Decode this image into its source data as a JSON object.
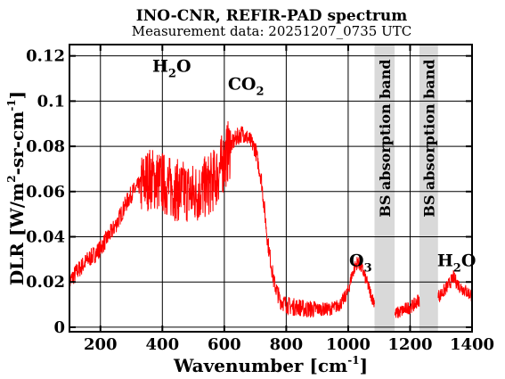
{
  "chart_data": {
    "type": "line",
    "title": "INO-CNR, REFIR-PAD spectrum",
    "subtitle": "Measurement data: 20251207_0735 UTC",
    "xlabel": {
      "main": "Wavenumber [cm",
      "sup": "-1",
      "tail": "]"
    },
    "ylabel": {
      "main": "DLR [W/m",
      "sup1": "2",
      "mid": "-sr-cm",
      "sup2": "-1",
      "tail": "]"
    },
    "xlim": [
      100,
      1400
    ],
    "ylim": [
      -0.002,
      0.125
    ],
    "xticks": [
      200,
      400,
      600,
      800,
      1000,
      1200,
      1400
    ],
    "xtick_labels": [
      "200",
      "400",
      "600",
      "800",
      "1000",
      "1200",
      "1400"
    ],
    "yticks": [
      0,
      0.02,
      0.04,
      0.06,
      0.08,
      0.1,
      0.12
    ],
    "ytick_labels": [
      "0",
      "0.02",
      "0.04",
      "0.06",
      "0.08",
      "0.1",
      "0.12"
    ],
    "grid": true,
    "colors": {
      "line": "#ff0000",
      "band": "#d9d9d9",
      "grid": "#000000"
    },
    "bands": [
      {
        "x0": 1085,
        "x1": 1150,
        "label": "BS absorption band"
      },
      {
        "x0": 1230,
        "x1": 1290,
        "label": "BS absorption band"
      }
    ],
    "annotations": [
      {
        "x": 430,
        "y": 0.113,
        "main": "H",
        "sub": "2",
        "tail": "O"
      },
      {
        "x": 670,
        "y": 0.105,
        "main": "CO",
        "sub": "2",
        "tail": ""
      },
      {
        "x": 1040,
        "y": 0.027,
        "main": "O",
        "sub": "3",
        "tail": ""
      },
      {
        "x": 1350,
        "y": 0.027,
        "main": "H",
        "sub": "2",
        "tail": "O"
      }
    ],
    "series": [
      {
        "x": [
          100,
          120,
          140,
          160,
          180,
          200,
          220,
          240,
          260,
          280,
          300,
          320,
          340,
          360,
          380,
          400,
          420,
          440,
          460,
          480,
          500,
          520,
          540,
          560,
          580,
          600,
          620,
          640,
          660,
          680,
          700,
          720,
          740,
          760,
          780,
          800,
          820,
          840,
          860,
          880,
          900,
          920,
          940,
          960,
          980,
          1000,
          1010,
          1020,
          1030,
          1040,
          1050,
          1060,
          1070,
          1080,
          1155,
          1170,
          1185,
          1200,
          1215,
          1225,
          1295,
          1310,
          1320,
          1330,
          1340,
          1350,
          1360,
          1370,
          1380,
          1390,
          1400
        ],
        "values": [
          0.02,
          0.024,
          0.027,
          0.03,
          0.032,
          0.035,
          0.039,
          0.043,
          0.048,
          0.054,
          0.059,
          0.062,
          0.064,
          0.066,
          0.065,
          0.064,
          0.062,
          0.061,
          0.06,
          0.06,
          0.059,
          0.06,
          0.062,
          0.064,
          0.068,
          0.074,
          0.08,
          0.084,
          0.086,
          0.083,
          0.079,
          0.065,
          0.038,
          0.02,
          0.012,
          0.01,
          0.009,
          0.009,
          0.008,
          0.008,
          0.008,
          0.008,
          0.008,
          0.009,
          0.011,
          0.016,
          0.022,
          0.026,
          0.029,
          0.027,
          0.024,
          0.02,
          0.016,
          0.012,
          0.006,
          0.007,
          0.008,
          0.009,
          0.01,
          0.012,
          0.014,
          0.016,
          0.018,
          0.02,
          0.022,
          0.02,
          0.018,
          0.017,
          0.016,
          0.015,
          0.014
        ]
      }
    ]
  }
}
